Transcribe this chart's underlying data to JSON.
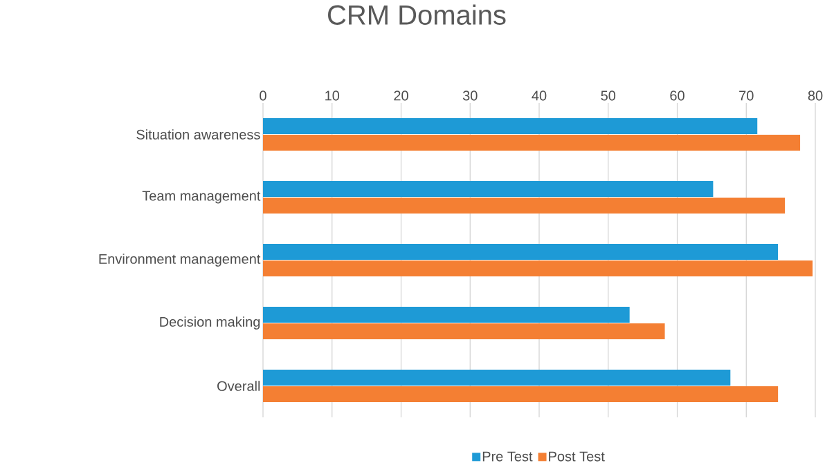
{
  "chart_data": {
    "type": "bar",
    "orientation": "horizontal",
    "title": "CRM Domains",
    "categories": [
      "Situation awareness",
      "Team management",
      "Environment management",
      "Decision making",
      "Overall"
    ],
    "series": [
      {
        "name": "Pre Test",
        "color": "#1e9ad6",
        "values": [
          71.6,
          65.2,
          74.6,
          53.1,
          67.7
        ]
      },
      {
        "name": "Post Test",
        "color": "#f47f33",
        "values": [
          77.8,
          75.6,
          79.6,
          58.2,
          74.6
        ]
      }
    ],
    "xlim": [
      0,
      80
    ],
    "xticks": [
      0,
      10,
      20,
      30,
      40,
      50,
      60,
      70,
      80
    ],
    "grid": "x",
    "legend": "bottom"
  }
}
